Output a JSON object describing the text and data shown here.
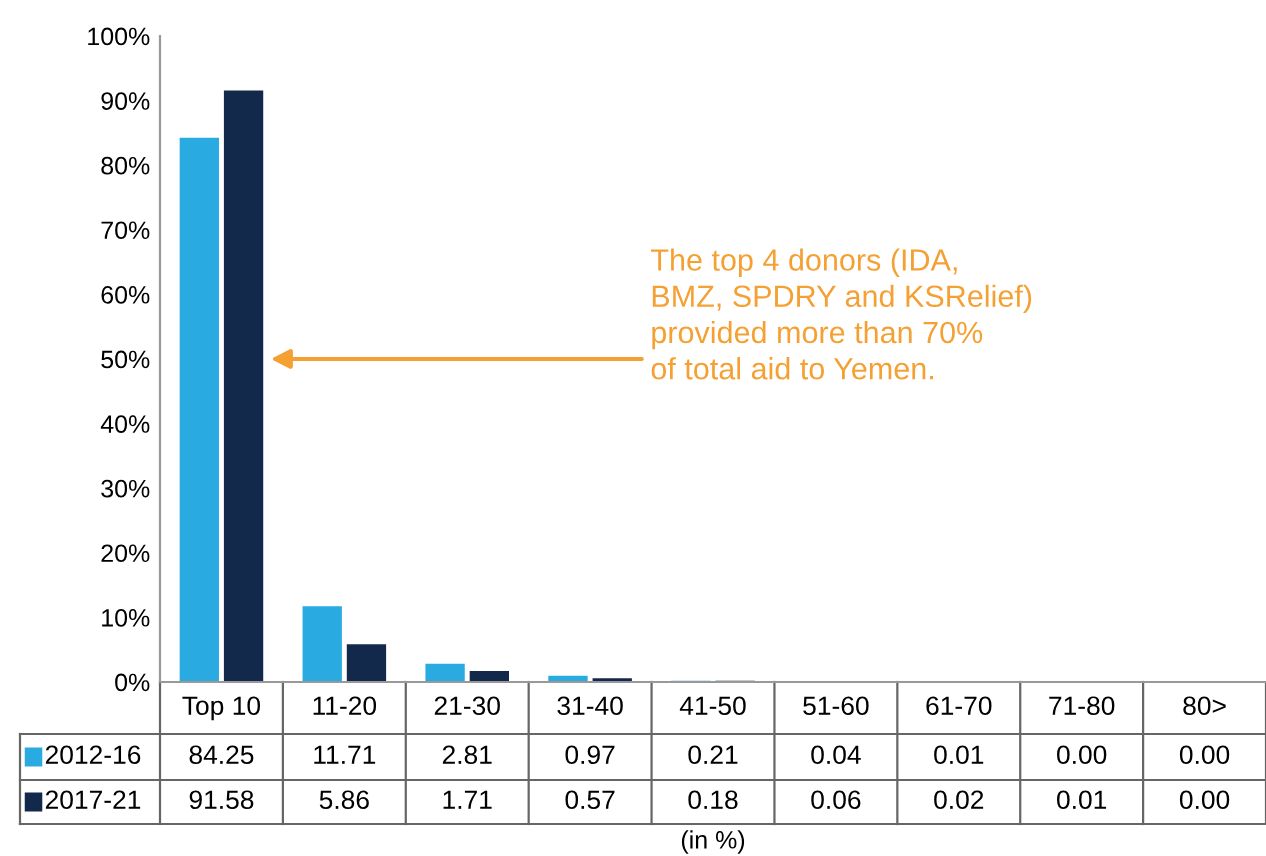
{
  "chart_data": {
    "type": "bar",
    "categories": [
      "Top 10",
      "11-20",
      "21-30",
      "31-40",
      "41-50",
      "51-60",
      "61-70",
      "71-80",
      "80>"
    ],
    "series": [
      {
        "name": "2012-16",
        "color": "#29abe2",
        "values": [
          84.25,
          11.71,
          2.81,
          0.97,
          0.21,
          0.04,
          0.01,
          0.0,
          0.0
        ],
        "value_labels": [
          "84.25",
          "11.71",
          "2.81",
          "0.97",
          "0.21",
          "0.04",
          "0.01",
          "0.00",
          "0.00"
        ]
      },
      {
        "name": "2017-21",
        "color": "#13294b",
        "values": [
          91.58,
          5.86,
          1.71,
          0.57,
          0.18,
          0.06,
          0.02,
          0.01,
          0.0
        ],
        "value_labels": [
          "91.58",
          "5.86",
          "1.71",
          "0.57",
          "0.18",
          "0.06",
          "0.02",
          "0.01",
          "0.00"
        ]
      }
    ],
    "ylim": [
      0,
      100
    ],
    "yticks": [
      {
        "value": 0,
        "label": "0%"
      },
      {
        "value": 10,
        "label": "10%"
      },
      {
        "value": 20,
        "label": "20%"
      },
      {
        "value": 30,
        "label": "30%"
      },
      {
        "value": 40,
        "label": "40%"
      },
      {
        "value": 50,
        "label": "50%"
      },
      {
        "value": 60,
        "label": "60%"
      },
      {
        "value": 70,
        "label": "70%"
      },
      {
        "value": 80,
        "label": "80%"
      },
      {
        "value": 90,
        "label": "90%"
      },
      {
        "value": 100,
        "label": "100%"
      }
    ],
    "xlabel": "(in %)",
    "annotations": [
      "The top 4 donors (IDA,\nBMZ, SPDRY and KSRelief)\nprovided more than 70%\nof total aid to Yemen."
    ],
    "grid": false,
    "legend": "bottom"
  }
}
